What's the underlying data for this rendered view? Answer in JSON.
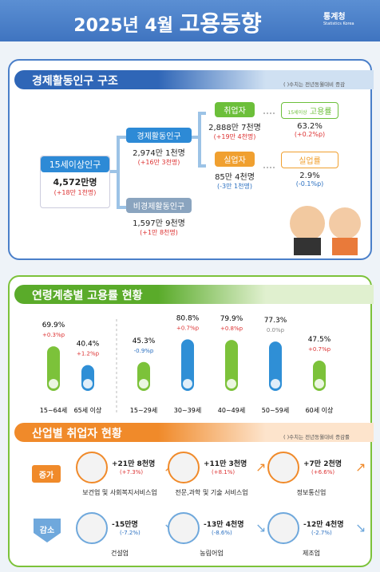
{
  "header": {
    "title_prefix": "2025년 4월",
    "title_main": "고용동향",
    "logo": "통계청",
    "logo_en": "Statistics Korea"
  },
  "structure": {
    "title": "경제활동인구 구조",
    "note": "( )수치는 전년동월대비 증감",
    "population": {
      "label": "15세이상인구",
      "value": "4,572만명",
      "change": "(+18만 1천명)"
    },
    "active": {
      "label": "경제활동인구",
      "value": "2,974만 1천명",
      "change": "(+16만 3천명)"
    },
    "inactive": {
      "label": "비경제활동인구",
      "value": "1,597만 9천명",
      "change": "(+1만 8천명)"
    },
    "employed": {
      "label": "취업자",
      "value": "2,888만 7천명",
      "change": "(+19만 4천명)"
    },
    "unemployed": {
      "label": "실업자",
      "value": "85만 4천명",
      "change": "(-3만 1천명)"
    },
    "employment_rate": {
      "label_small": "15세이상",
      "label": "고용률",
      "value": "63.2%",
      "change": "(+0.2%p)"
    },
    "unemployment_rate": {
      "label": "실업률",
      "value": "2.9%",
      "change": "(-0.1%p)"
    }
  },
  "age_chart": {
    "type": "bar",
    "title": "연령계층별 고용률 현황",
    "categories": [
      "15~64세",
      "65세 이상",
      "15~29세",
      "30~39세",
      "40~49세",
      "50~59세",
      "60세 이상"
    ],
    "values": [
      69.9,
      40.4,
      45.3,
      80.8,
      79.9,
      77.3,
      47.5
    ],
    "value_labels": [
      "69.9%",
      "40.4%",
      "45.3%",
      "80.8%",
      "79.9%",
      "77.3%",
      "47.5%"
    ],
    "changes": [
      "+0.3%p",
      "+1.2%p",
      "-0.9%p",
      "+0.7%p",
      "+0.8%p",
      "0.0%p",
      "+0.7%p"
    ],
    "colors": [
      "#7cc23a",
      "#2f8fd6",
      "#7cc23a",
      "#2f8fd6",
      "#7cc23a",
      "#2f8fd6",
      "#7cc23a"
    ],
    "ylim": [
      0,
      100
    ]
  },
  "industry": {
    "title": "산업별 취업자 현황",
    "note": "( )수치는 전년동월대비 증감률",
    "increase_label": "증가",
    "decrease_label": "감소",
    "increase": [
      {
        "name": "보건업 및 사회복지서비스업",
        "value": "+21만 8천명",
        "rate": "(+7.3%)"
      },
      {
        "name": "전문,과학 및 기술 서비스업",
        "value": "+11만 3천명",
        "rate": "(+8.1%)"
      },
      {
        "name": "정보통신업",
        "value": "+7만 2천명",
        "rate": "(+6.6%)"
      }
    ],
    "decrease": [
      {
        "name": "건설업",
        "value": "-15만명",
        "rate": "(-7.2%)"
      },
      {
        "name": "농림어업",
        "value": "-13만 4천명",
        "rate": "(-8.6%)"
      },
      {
        "name": "제조업",
        "value": "-12만 4천명",
        "rate": "(-2.7%)"
      }
    ]
  }
}
